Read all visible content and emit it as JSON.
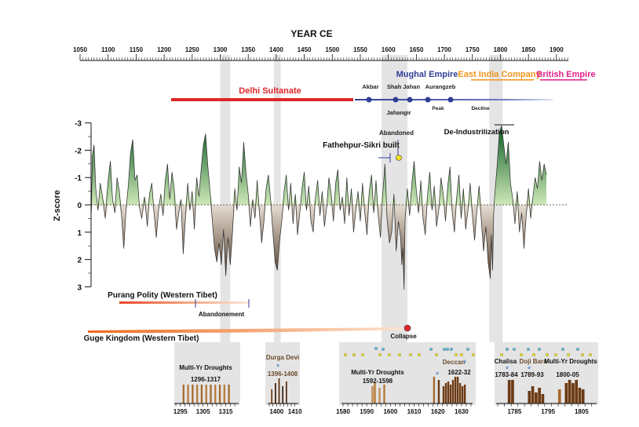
{
  "chart_data": {
    "type": "line",
    "title": "YEAR CE",
    "ylabel": "Z-score",
    "ylim": [
      3,
      -3
    ],
    "xlim": [
      1050,
      1920
    ],
    "x_ticks": [
      "1050",
      "1100",
      "1150",
      "1200",
      "1250",
      "1300",
      "1350",
      "1400",
      "1450",
      "1500",
      "1550",
      "1600",
      "1650",
      "1700",
      "1750",
      "1800",
      "1850",
      "1900"
    ],
    "y_ticks": [
      "-3",
      "-2",
      "-1",
      "0",
      "1",
      "2",
      "3"
    ],
    "grey_bands": [
      [
        1300,
        1318
      ],
      [
        1396,
        1408
      ],
      [
        1588,
        1634
      ],
      [
        1780,
        1804
      ]
    ],
    "series": [
      {
        "values": [
          [
            1070,
            0.3
          ],
          [
            1072,
            -1.8
          ],
          [
            1075,
            -2.2
          ],
          [
            1078,
            -0.6
          ],
          [
            1082,
            0.2
          ],
          [
            1086,
            -0.8
          ],
          [
            1090,
            -0.3
          ],
          [
            1095,
            0.5
          ],
          [
            1100,
            -0.9
          ],
          [
            1104,
            -1.6
          ],
          [
            1108,
            -0.2
          ],
          [
            1112,
            0.3
          ],
          [
            1116,
            -1.0
          ],
          [
            1120,
            -0.5
          ],
          [
            1124,
            0.4
          ],
          [
            1128,
            1.6
          ],
          [
            1132,
            0.2
          ],
          [
            1136,
            -0.7
          ],
          [
            1140,
            -1.9
          ],
          [
            1144,
            -2.4
          ],
          [
            1148,
            -0.9
          ],
          [
            1152,
            -1.1
          ],
          [
            1156,
            0.1
          ],
          [
            1160,
            0.5
          ],
          [
            1165,
            -0.3
          ],
          [
            1170,
            0.8
          ],
          [
            1174,
            -0.4
          ],
          [
            1178,
            -0.8
          ],
          [
            1182,
            0.3
          ],
          [
            1186,
            1.2
          ],
          [
            1190,
            0.2
          ],
          [
            1194,
            -0.4
          ],
          [
            1198,
            0.4
          ],
          [
            1202,
            -0.9
          ],
          [
            1206,
            -1.5
          ],
          [
            1210,
            -0.2
          ],
          [
            1214,
            -1.2
          ],
          [
            1218,
            -0.6
          ],
          [
            1222,
            0.9
          ],
          [
            1226,
            0.3
          ],
          [
            1230,
            -0.2
          ],
          [
            1234,
            1.8
          ],
          [
            1238,
            0.5
          ],
          [
            1242,
            -0.8
          ],
          [
            1246,
            0.2
          ],
          [
            1250,
            -0.5
          ],
          [
            1254,
            0.9
          ],
          [
            1258,
            -1.0
          ],
          [
            1262,
            -0.3
          ],
          [
            1266,
            -1.3
          ],
          [
            1270,
            -2.2
          ],
          [
            1274,
            -2.6
          ],
          [
            1278,
            -1.4
          ],
          [
            1282,
            -0.5
          ],
          [
            1286,
            0.6
          ],
          [
            1290,
            1.6
          ],
          [
            1294,
            2.1
          ],
          [
            1298,
            1.4
          ],
          [
            1302,
            2.2
          ],
          [
            1306,
            0.9
          ],
          [
            1310,
            2.6
          ],
          [
            1314,
            1.2
          ],
          [
            1318,
            2.2
          ],
          [
            1322,
            1.0
          ],
          [
            1326,
            -0.6
          ],
          [
            1330,
            0.2
          ],
          [
            1334,
            -1.4
          ],
          [
            1338,
            -0.8
          ],
          [
            1342,
            -2.3
          ],
          [
            1346,
            -1.2
          ],
          [
            1350,
            -0.4
          ],
          [
            1354,
            0.8
          ],
          [
            1358,
            -0.2
          ],
          [
            1362,
            0.5
          ],
          [
            1366,
            -0.9
          ],
          [
            1370,
            0.3
          ],
          [
            1374,
            1.4
          ],
          [
            1378,
            0.6
          ],
          [
            1382,
            -0.6
          ],
          [
            1386,
            -1.1
          ],
          [
            1390,
            -0.2
          ],
          [
            1394,
            1.0
          ],
          [
            1398,
            2.1
          ],
          [
            1402,
            2.4
          ],
          [
            1406,
            1.3
          ],
          [
            1410,
            0.6
          ],
          [
            1414,
            -0.5
          ],
          [
            1418,
            -1.1
          ],
          [
            1422,
            0.2
          ],
          [
            1426,
            -0.8
          ],
          [
            1430,
            0.7
          ],
          [
            1434,
            -0.4
          ],
          [
            1438,
            1.1
          ],
          [
            1442,
            0.3
          ],
          [
            1446,
            -0.6
          ],
          [
            1450,
            -1.2
          ],
          [
            1454,
            0.2
          ],
          [
            1458,
            -0.7
          ],
          [
            1462,
            0.6
          ],
          [
            1466,
            1.0
          ],
          [
            1470,
            -0.3
          ],
          [
            1474,
            -0.9
          ],
          [
            1478,
            0.4
          ],
          [
            1482,
            -0.5
          ],
          [
            1486,
            0.8
          ],
          [
            1490,
            0.1
          ],
          [
            1494,
            -1.0
          ],
          [
            1498,
            -0.4
          ],
          [
            1502,
            0.6
          ],
          [
            1506,
            -0.8
          ],
          [
            1510,
            -1.3
          ],
          [
            1514,
            0.2
          ],
          [
            1518,
            -0.3
          ],
          [
            1522,
            0.7
          ],
          [
            1526,
            -1.0
          ],
          [
            1530,
            0.4
          ],
          [
            1534,
            -0.6
          ],
          [
            1538,
            1.0
          ],
          [
            1542,
            0.2
          ],
          [
            1546,
            -0.5
          ],
          [
            1550,
            0.6
          ],
          [
            1554,
            -0.8
          ],
          [
            1558,
            0.3
          ],
          [
            1562,
            1.1
          ],
          [
            1566,
            -0.5
          ],
          [
            1570,
            -1.1
          ],
          [
            1574,
            0.3
          ],
          [
            1578,
            -0.9
          ],
          [
            1582,
            0.4
          ],
          [
            1586,
            1.2
          ],
          [
            1590,
            -0.4
          ],
          [
            1594,
            -1.5
          ],
          [
            1598,
            0.6
          ],
          [
            1602,
            1.4
          ],
          [
            1606,
            1.0
          ],
          [
            1610,
            -0.4
          ],
          [
            1614,
            1.7
          ],
          [
            1618,
            0.6
          ],
          [
            1622,
            1.2
          ],
          [
            1624,
            2.2
          ],
          [
            1626,
            1.6
          ],
          [
            1628,
            3.1
          ],
          [
            1630,
            0.5
          ],
          [
            1634,
            -0.6
          ],
          [
            1638,
            0.4
          ],
          [
            1642,
            -0.8
          ],
          [
            1646,
            -1.6
          ],
          [
            1650,
            -0.5
          ],
          [
            1654,
            0.3
          ],
          [
            1658,
            -0.9
          ],
          [
            1662,
            0.5
          ],
          [
            1666,
            1.1
          ],
          [
            1670,
            -0.4
          ],
          [
            1674,
            -1.2
          ],
          [
            1678,
            0.2
          ],
          [
            1682,
            -0.7
          ],
          [
            1686,
            0.8
          ],
          [
            1690,
            0.2
          ],
          [
            1694,
            -1.0
          ],
          [
            1698,
            -0.4
          ],
          [
            1702,
            0.6
          ],
          [
            1706,
            -0.7
          ],
          [
            1710,
            -1.4
          ],
          [
            1714,
            0.3
          ],
          [
            1718,
            1.0
          ],
          [
            1722,
            -0.3
          ],
          [
            1726,
            -1.1
          ],
          [
            1730,
            0.5
          ],
          [
            1734,
            -0.6
          ],
          [
            1738,
            0.9
          ],
          [
            1742,
            0.2
          ],
          [
            1746,
            -0.8
          ],
          [
            1750,
            0.4
          ],
          [
            1754,
            1.3
          ],
          [
            1758,
            0.2
          ],
          [
            1762,
            -0.7
          ],
          [
            1766,
            0.6
          ],
          [
            1770,
            1.7
          ],
          [
            1774,
            0.8
          ],
          [
            1778,
            2.1
          ],
          [
            1782,
            2.7
          ],
          [
            1784,
            1.1
          ],
          [
            1786,
            2.4
          ],
          [
            1788,
            0.3
          ],
          [
            1790,
            -0.4
          ],
          [
            1794,
            -1.4
          ],
          [
            1798,
            -2.6
          ],
          [
            1802,
            -2.9
          ],
          [
            1806,
            -2.2
          ],
          [
            1810,
            -1.5
          ],
          [
            1814,
            -2.3
          ],
          [
            1818,
            -0.8
          ],
          [
            1822,
            -0.2
          ],
          [
            1826,
            0.7
          ],
          [
            1830,
            -0.5
          ],
          [
            1834,
            1.0
          ],
          [
            1838,
            0.3
          ],
          [
            1842,
            1.6
          ],
          [
            1846,
            0.4
          ],
          [
            1850,
            -0.6
          ],
          [
            1854,
            0.5
          ],
          [
            1858,
            -0.3
          ],
          [
            1862,
            -1.0
          ],
          [
            1866,
            -0.6
          ],
          [
            1870,
            -1.6
          ],
          [
            1874,
            -0.9
          ],
          [
            1878,
            -1.5
          ],
          [
            1882,
            -1.1
          ]
        ]
      }
    ]
  },
  "header": {
    "years": [
      "1050",
      "1100",
      "1150",
      "1200",
      "1250",
      "1300",
      "1350",
      "1400",
      "1450",
      "1500",
      "1550",
      "1600",
      "1650",
      "1700",
      "1750",
      "1800",
      "1850",
      "1900"
    ]
  },
  "empires": {
    "delhi": "Delhi Sultanate",
    "mughal": "Mughal Empire",
    "eic": "East India Company",
    "british": "British Empire",
    "akbar": "Akbar",
    "shahjahan": "Shah Jahan",
    "aurangzeb": "Aurangzeb",
    "jahangir": "Jahangir",
    "peak": "Peak",
    "decline": "Decline"
  },
  "events": {
    "abandoned": "Abandoned",
    "fathehpur": "Fathehpur-Sikri built",
    "deindustrial": "De-Industrilization",
    "purang": "Purang Polity (Western Tibet)",
    "abandonement": "Abandonement",
    "guge": "Guge Kingdom (Western Tibet)",
    "collapse": "Collapse"
  },
  "insets": {
    "i1": {
      "title": "Multi-Yr Droughts",
      "range": "1296-1317",
      "ticks": [
        "1295",
        "1305",
        "1315"
      ]
    },
    "i2": {
      "title": "Durga Devi",
      "range": "1396-1408",
      "ticks": [
        "1400",
        "1410"
      ]
    },
    "i3": {
      "title": "Multi-Yr Droughts",
      "range": "1592-1598",
      "title2": "Deccan",
      "range2": "1622-32",
      "ticks": [
        "1580",
        "1590",
        "1600",
        "1610",
        "1620",
        "1630"
      ]
    },
    "i4": {
      "title": "Chalisa",
      "t2": "Doji Bara",
      "t3": "Multi-Yr Droughts",
      "r1": "1783-84",
      "r2": "1789-93",
      "r3": "1800-05",
      "ticks": [
        "1785",
        "1795",
        "1805"
      ]
    }
  },
  "colors": {
    "wet": "#2e8b3a",
    "dry": "#5c3a1e",
    "band": "#e4e4e4",
    "delhi": "#e0262b",
    "mughal": "#2f3f96",
    "eic": "#f2941c",
    "british": "#e0218a"
  }
}
